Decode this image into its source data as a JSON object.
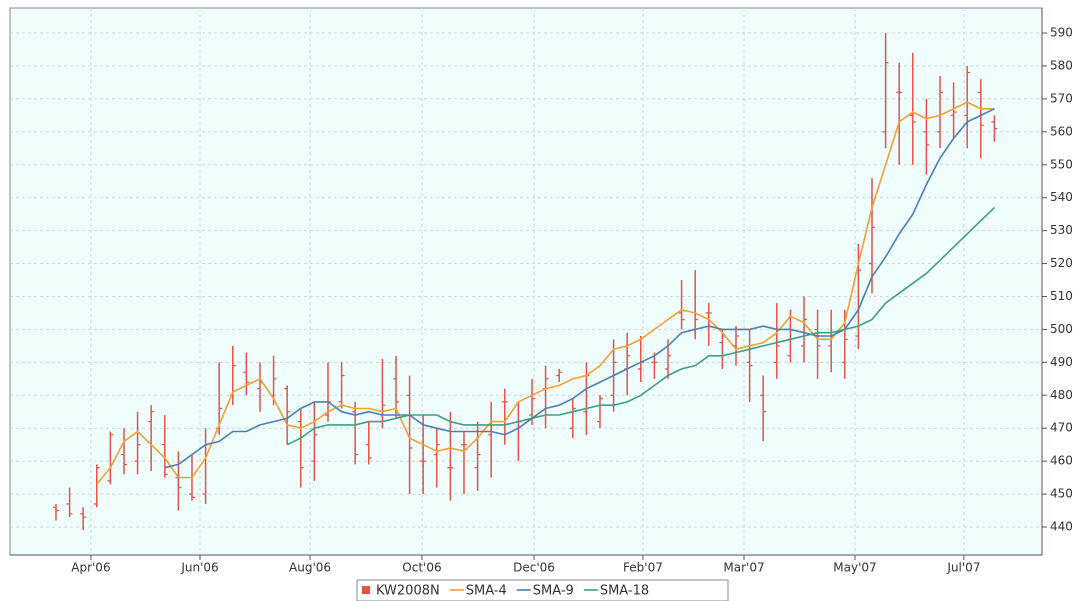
{
  "chart_data": {
    "type": "ohlc",
    "x": [
      0,
      1,
      2,
      3,
      4,
      5,
      6,
      7,
      8,
      9,
      10,
      11,
      12,
      13,
      14,
      15,
      16,
      17,
      18,
      19,
      20,
      21,
      22,
      23,
      24,
      25,
      26,
      27,
      28,
      29,
      30,
      31,
      32,
      33,
      34,
      35,
      36,
      37,
      38,
      39,
      40,
      41,
      42,
      43,
      44,
      45,
      46,
      47,
      48,
      49,
      50,
      51,
      52,
      53,
      54,
      55,
      56,
      57,
      58,
      59,
      60,
      61,
      62,
      63,
      64,
      65,
      66,
      67,
      68,
      69
    ],
    "xlim": [
      -3.38,
      72.5
    ],
    "xticks": [
      {
        "value": 2.57,
        "label": "Apr'06"
      },
      {
        "value": 10.59,
        "label": "Jun'06"
      },
      {
        "value": 18.68,
        "label": "Aug'06"
      },
      {
        "value": 26.91,
        "label": "Oct'06"
      },
      {
        "value": 35.15,
        "label": "Dec'06"
      },
      {
        "value": 43.16,
        "label": "Feb'07"
      },
      {
        "value": 50.59,
        "label": "Mar'07"
      },
      {
        "value": 58.75,
        "label": "May'07"
      },
      {
        "value": 66.76,
        "label": "Jul'07"
      }
    ],
    "ylim": [
      431.5,
      597.6
    ],
    "yticks": [
      440,
      450,
      460,
      470,
      480,
      490,
      500,
      510,
      520,
      530,
      540,
      550,
      560,
      570,
      580,
      590
    ],
    "grid": true,
    "series": [
      {
        "name": "KW2008N",
        "color": "#e8504a",
        "kind": "ohlc",
        "high": [
          447,
          452,
          446,
          459,
          469,
          470,
          475,
          477,
          474,
          463,
          462,
          470,
          490,
          495,
          493,
          490,
          492,
          483,
          476,
          478,
          490,
          490,
          478,
          472,
          491,
          492,
          486,
          474,
          470,
          475,
          469,
          472,
          478,
          482,
          478,
          485,
          489,
          488,
          479,
          490,
          480,
          497,
          499,
          498,
          493,
          497,
          515,
          518,
          508,
          500,
          501,
          500,
          486,
          508,
          506,
          510,
          506,
          506,
          506,
          526,
          546,
          590,
          581,
          584,
          570,
          577,
          575,
          580,
          576,
          565
        ],
        "low": [
          442,
          443,
          439,
          446,
          453,
          456,
          456,
          457,
          455,
          445,
          448,
          447,
          468,
          477,
          480,
          475,
          477,
          465,
          452,
          454,
          472,
          476,
          459,
          459,
          470,
          473,
          450,
          450,
          452,
          448,
          450,
          451,
          455,
          465,
          460,
          471,
          470,
          484,
          467,
          468,
          470,
          475,
          480,
          484,
          485,
          485,
          500,
          497,
          495,
          488,
          489,
          478,
          466,
          485,
          490,
          490,
          485,
          487,
          485,
          494,
          511,
          555,
          550,
          550,
          547,
          555,
          558,
          555,
          552,
          557
        ],
        "open": [
          446,
          447,
          444,
          447,
          454,
          462,
          460,
          472,
          465,
          455,
          450,
          450,
          470,
          480,
          487,
          482,
          480,
          482,
          472,
          460,
          474,
          478,
          475,
          465,
          472,
          485,
          480,
          460,
          462,
          458,
          465,
          458,
          468,
          478,
          472,
          474,
          482,
          486,
          470,
          475,
          472,
          480,
          488,
          488,
          490,
          488,
          505,
          500,
          505,
          496,
          495,
          490,
          480,
          490,
          492,
          495,
          500,
          495,
          490,
          498,
          520,
          560,
          572,
          565,
          560,
          560,
          565,
          565,
          572,
          563
        ],
        "close": [
          445,
          444,
          443,
          458,
          468,
          459,
          465,
          475,
          456,
          452,
          449,
          465,
          476,
          489,
          484,
          484,
          485,
          475,
          458,
          468,
          478,
          486,
          462,
          461,
          477,
          478,
          464,
          460,
          465,
          458,
          465,
          462,
          472,
          478,
          472,
          479,
          485,
          487,
          476,
          486,
          479,
          490,
          492,
          490,
          490,
          492,
          503,
          503,
          505,
          498,
          498,
          489,
          475,
          495,
          500,
          503,
          495,
          498,
          497,
          518,
          531,
          581,
          572,
          563,
          556,
          572,
          566,
          578,
          562,
          561
        ]
      },
      {
        "name": "SMA-4",
        "color": "#f5a033",
        "kind": "line",
        "values": [
          null,
          null,
          null,
          453,
          458,
          466,
          469,
          465,
          461,
          455,
          455,
          461,
          471,
          481,
          483,
          485,
          479,
          471,
          470,
          472,
          475,
          477,
          476,
          476,
          475,
          476,
          467,
          465,
          463,
          464,
          463,
          467,
          472,
          472,
          478,
          480,
          482,
          483,
          485,
          486,
          489,
          494,
          495,
          497,
          500,
          503,
          506,
          505,
          503,
          499,
          494,
          495,
          496,
          499,
          504,
          502,
          497,
          497,
          502,
          520,
          537,
          550,
          563,
          566,
          564,
          565,
          567,
          569,
          567,
          567
        ]
      },
      {
        "name": "SMA-9",
        "color": "#4a7fb5",
        "kind": "line",
        "values": [
          null,
          null,
          null,
          null,
          null,
          null,
          null,
          null,
          458,
          459,
          462,
          465,
          466,
          469,
          469,
          471,
          472,
          473,
          476,
          478,
          478,
          475,
          474,
          475,
          474,
          474,
          474,
          471,
          470,
          469,
          469,
          469,
          469,
          468,
          470,
          473,
          476,
          477,
          479,
          482,
          484,
          486,
          488,
          490,
          492,
          495,
          499,
          500,
          501,
          500,
          500,
          500,
          501,
          500,
          500,
          499,
          498,
          498,
          500,
          506,
          516,
          522,
          529,
          535,
          544,
          552,
          558,
          563,
          565,
          567
        ]
      },
      {
        "name": "SMA-18",
        "color": "#3f9e84",
        "kind": "line",
        "values": [
          null,
          null,
          null,
          null,
          null,
          null,
          null,
          null,
          null,
          null,
          null,
          null,
          null,
          null,
          null,
          null,
          null,
          465,
          467,
          470,
          471,
          471,
          471,
          472,
          472,
          473,
          474,
          474,
          474,
          472,
          471,
          471,
          471,
          471,
          472,
          473,
          474,
          474,
          475,
          476,
          477,
          477,
          478,
          480,
          483,
          486,
          488,
          489,
          492,
          492,
          493,
          494,
          495,
          496,
          497,
          498,
          499,
          499,
          500,
          501,
          503,
          508,
          511,
          514,
          517,
          521,
          525,
          529,
          533,
          537
        ]
      }
    ]
  }
}
